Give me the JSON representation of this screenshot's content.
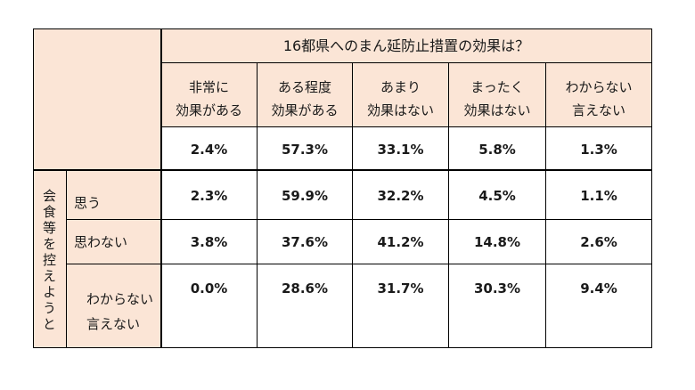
{
  "table": {
    "title": "16都県へのまん延防止措置の効果は？",
    "columns": [
      [
        "非常に",
        "効果がある"
      ],
      [
        "ある程度",
        "効果がある"
      ],
      [
        "あまり",
        "効果はない"
      ],
      [
        "まったく",
        "効果はない"
      ],
      [
        "わからない",
        "言えない"
      ]
    ],
    "overall": [
      "2.4%",
      "57.3%",
      "33.1%",
      "5.8%",
      "1.3%"
    ],
    "group_label": "会食等を控えようと",
    "rows": [
      {
        "label": [
          "思う"
        ],
        "values": [
          "2.3%",
          "59.9%",
          "32.2%",
          "4.5%",
          "1.1%"
        ]
      },
      {
        "label": [
          "思わない"
        ],
        "values": [
          "3.8%",
          "37.6%",
          "41.2%",
          "14.8%",
          "2.6%"
        ]
      },
      {
        "label": [
          "わからない",
          "言えない"
        ],
        "values": [
          "0.0%",
          "28.6%",
          "31.7%",
          "30.3%",
          "9.4%"
        ]
      }
    ],
    "colors": {
      "header_fill": "#fbe5d6",
      "border": "#000000"
    }
  }
}
